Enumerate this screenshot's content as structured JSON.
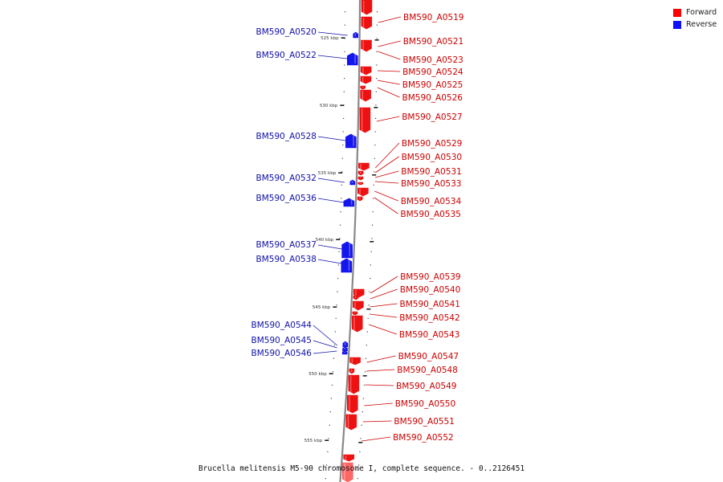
{
  "caption": "Brucella melitensis M5-90 chromosome I, complete sequence. - 0..2126451",
  "legend": [
    {
      "label": "Forward",
      "color": "#ff0000"
    },
    {
      "label": "Reverse",
      "color": "#1010ff"
    }
  ],
  "colors": {
    "forward": "#ee1111",
    "forward_label": "#cc0000",
    "reverse": "#1515ee",
    "reverse_label": "#1111aa",
    "backbone": "#888888"
  },
  "ticks": [
    {
      "label": "525 kbp"
    },
    {
      "label": "530 kbp"
    },
    {
      "label": "535 kbp"
    },
    {
      "label": "540 kbp"
    },
    {
      "label": "545 kbp"
    },
    {
      "label": "550 kbp"
    },
    {
      "label": "555 kbp"
    }
  ],
  "forward_genes": [
    {
      "label": "BM590_A0519"
    },
    {
      "label": "BM590_A0521"
    },
    {
      "label": "BM590_A0523"
    },
    {
      "label": "BM590_A0524"
    },
    {
      "label": "BM590_A0525"
    },
    {
      "label": "BM590_A0526"
    },
    {
      "label": "BM590_A0527"
    },
    {
      "label": "BM590_A0529"
    },
    {
      "label": "BM590_A0530"
    },
    {
      "label": "BM590_A0531"
    },
    {
      "label": "BM590_A0533"
    },
    {
      "label": "BM590_A0534"
    },
    {
      "label": "BM590_A0535"
    },
    {
      "label": "BM590_A0539"
    },
    {
      "label": "BM590_A0540"
    },
    {
      "label": "BM590_A0541"
    },
    {
      "label": "BM590_A0542"
    },
    {
      "label": "BM590_A0543"
    },
    {
      "label": "BM590_A0547"
    },
    {
      "label": "BM590_A0548"
    },
    {
      "label": "BM590_A0549"
    },
    {
      "label": "BM590_A0550"
    },
    {
      "label": "BM590_A0551"
    },
    {
      "label": "BM590_A0552"
    }
  ],
  "reverse_genes": [
    {
      "label": "BM590_A0520"
    },
    {
      "label": "BM590_A0522"
    },
    {
      "label": "BM590_A0528"
    },
    {
      "label": "BM590_A0532"
    },
    {
      "label": "BM590_A0536"
    },
    {
      "label": "BM590_A0537"
    },
    {
      "label": "BM590_A0538"
    },
    {
      "label": "BM590_A0544"
    },
    {
      "label": "BM590_A0545"
    },
    {
      "label": "BM590_A0546"
    }
  ]
}
